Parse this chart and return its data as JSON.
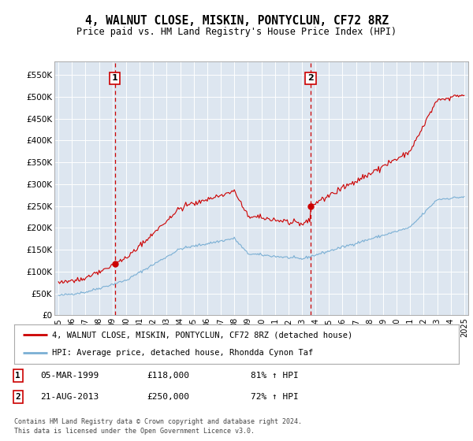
{
  "title": "4, WALNUT CLOSE, MISKIN, PONTYCLUN, CF72 8RZ",
  "subtitle": "Price paid vs. HM Land Registry's House Price Index (HPI)",
  "sale1_date": "05-MAR-1999",
  "sale1_price": 118000,
  "sale1_label": "81% ↑ HPI",
  "sale2_date": "21-AUG-2013",
  "sale2_price": 250000,
  "sale2_label": "72% ↑ HPI",
  "red_line_color": "#cc0000",
  "blue_line_color": "#7aafd4",
  "background_color": "#dde6f0",
  "legend_red_label": "4, WALNUT CLOSE, MISKIN, PONTYCLUN, CF72 8RZ (detached house)",
  "legend_blue_label": "HPI: Average price, detached house, Rhondda Cynon Taf",
  "footer": "Contains HM Land Registry data © Crown copyright and database right 2024.\nThis data is licensed under the Open Government Licence v3.0.",
  "ylim": [
    0,
    580000
  ],
  "yticks": [
    0,
    50000,
    100000,
    150000,
    200000,
    250000,
    300000,
    350000,
    400000,
    450000,
    500000,
    550000
  ],
  "ytick_labels": [
    "£0",
    "£50K",
    "£100K",
    "£150K",
    "£200K",
    "£250K",
    "£300K",
    "£350K",
    "£400K",
    "£450K",
    "£500K",
    "£550K"
  ],
  "sale1_x_year": 1999.17,
  "sale2_x_year": 2013.64,
  "xlim_left": 1994.7,
  "xlim_right": 2025.3
}
